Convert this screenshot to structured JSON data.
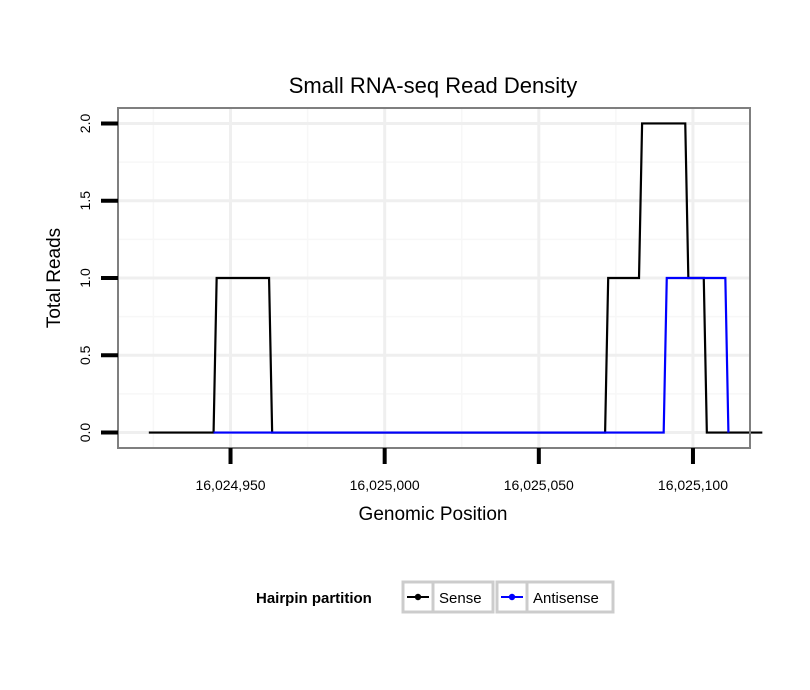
{
  "chart_data": {
    "type": "line",
    "title": "Small RNA-seq Read Density",
    "xlabel": "Genomic Position",
    "ylabel": "Total Reads",
    "xlim": [
      16024913.5,
      16025118.5
    ],
    "ylim": [
      -0.1,
      2.1
    ],
    "grid": true,
    "legend_position": "bottom",
    "x_ticks": [
      {
        "value": 16024950,
        "label": "16,024,950"
      },
      {
        "value": 16025000,
        "label": "16,025,000"
      },
      {
        "value": 16025050,
        "label": "16,025,050"
      },
      {
        "value": 16025100,
        "label": "16,025,100"
      }
    ],
    "y_ticks": [
      {
        "value": 0.0,
        "label": "0.0"
      },
      {
        "value": 0.5,
        "label": "0.5"
      },
      {
        "value": 1.0,
        "label": "1.0"
      },
      {
        "value": 1.5,
        "label": "1.5"
      },
      {
        "value": 2.0,
        "label": "2.0"
      }
    ],
    "legend_title": "Hairpin partition",
    "series": [
      {
        "name": "Sense",
        "color": "#000000",
        "x": [
          16024923.5,
          16024944.5,
          16024945.5,
          16024962.5,
          16024963.5,
          16025071.5,
          16025072.5,
          16025082.5,
          16025083.5,
          16025097.5,
          16025098.5,
          16025103.5,
          16025104.5,
          16025122.5
        ],
        "y": [
          0,
          0,
          1,
          1,
          0,
          0,
          1,
          1,
          2,
          2,
          1,
          1,
          0,
          0
        ]
      },
      {
        "name": "Antisense",
        "color": "#0000ff",
        "x": [
          16024944.5,
          16024963.5,
          16025071.5,
          16025090.5,
          16025091.5,
          16025110.5,
          16025111.5
        ],
        "y": [
          0,
          0,
          0,
          0,
          1,
          1,
          0
        ]
      }
    ]
  }
}
